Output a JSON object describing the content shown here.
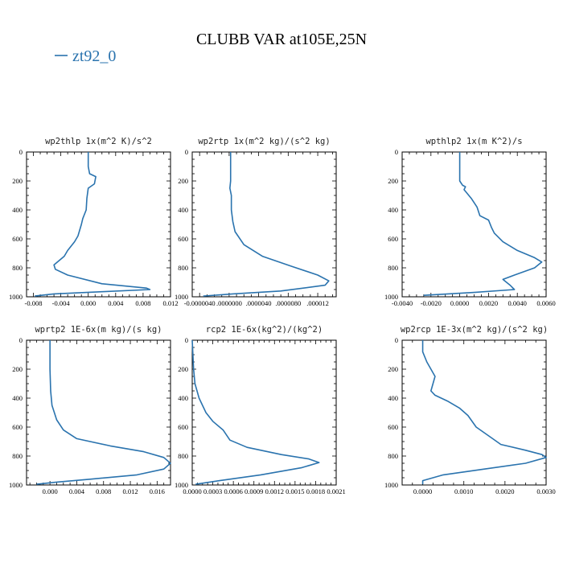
{
  "figure": {
    "title": "CLUBB VAR at105E,25N",
    "legend": {
      "label": "zt92_0",
      "color": "#2a73ae"
    }
  },
  "chart_data": [
    {
      "type": "line",
      "title": "wp2thlp  1x(m^2 K)/s^2",
      "xlim": [
        -0.009,
        0.012
      ],
      "xticks": [
        -0.008,
        -0.004,
        0.0,
        0.004,
        0.008,
        0.012
      ],
      "xtick_labels": [
        "-0.008",
        "-0.004",
        "0.000",
        "0.004",
        "0.008",
        "0.012"
      ],
      "ylim": [
        0,
        1000
      ],
      "yticks": [
        0,
        200,
        400,
        600,
        800,
        1000
      ],
      "series": [
        {
          "color": "#2a73ae",
          "x": [
            0.0,
            0.0,
            0.0002,
            0.0011,
            0.0009,
            0.0,
            -0.0002,
            -0.0003,
            -0.0008,
            -0.001,
            -0.0015,
            -0.002,
            -0.003,
            -0.0035,
            -0.005,
            -0.0048,
            -0.003,
            0.002,
            0.0085,
            0.009,
            0.002,
            -0.005,
            -0.0078
          ],
          "y": [
            0,
            100,
            150,
            170,
            220,
            250,
            320,
            400,
            460,
            500,
            580,
            620,
            680,
            720,
            780,
            810,
            850,
            910,
            940,
            950,
            965,
            980,
            995
          ]
        }
      ]
    },
    {
      "type": "line",
      "title": "wp2rtp  1x(m^2 kg)/(s^2 kg)",
      "xlim": [
        -5e-06,
        1.45e-05
      ],
      "xticks": [
        -4e-06,
        0.0,
        4e-06,
        8e-06,
        1.2e-05
      ],
      "xtick_labels": [
        "-0.0000040",
        ".0000000",
        ".0000040",
        ".0000080",
        ".000012"
      ],
      "ylim": [
        0,
        1000
      ],
      "yticks": [
        0,
        200,
        400,
        600,
        800,
        1000
      ],
      "series": [
        {
          "color": "#2a73ae",
          "x": [
            2e-07,
            2e-07,
            2e-07,
            1e-07,
            3e-07,
            3e-07,
            5e-07,
            8e-07,
            2e-06,
            4.5e-06,
            8.5e-06,
            1.2e-05,
            1.35e-05,
            1.3e-05,
            7e-06,
            5e-07,
            -3.5e-06
          ],
          "y": [
            0,
            100,
            200,
            250,
            300,
            400,
            480,
            550,
            640,
            720,
            790,
            850,
            890,
            920,
            960,
            980,
            995
          ]
        }
      ]
    },
    {
      "type": "line",
      "title": "wpthlp2  1x(m K^2)/s",
      "xlim": [
        -0.004,
        0.006
      ],
      "xticks": [
        -0.004,
        -0.002,
        0.0,
        0.002,
        0.004,
        0.006
      ],
      "xtick_labels": [
        "-0.0040",
        "-0.0020",
        "0.0000",
        "0.0020",
        "0.0040",
        "0.0060"
      ],
      "ylim": [
        0,
        1000
      ],
      "yticks": [
        0,
        200,
        400,
        600,
        800,
        1000
      ],
      "series": [
        {
          "color": "#2a73ae",
          "x": [
            0.0,
            0.0,
            0.0,
            0.0002,
            0.0004,
            0.0003,
            0.0008,
            0.0012,
            0.0014,
            0.002,
            0.0022,
            0.0024,
            0.003,
            0.004,
            0.0052,
            0.0057,
            0.0052,
            0.0038,
            0.003,
            0.0035,
            0.0038,
            0.001,
            -0.0025
          ],
          "y": [
            0,
            100,
            200,
            230,
            240,
            260,
            320,
            380,
            440,
            470,
            520,
            560,
            620,
            680,
            730,
            760,
            800,
            850,
            880,
            920,
            950,
            970,
            990
          ]
        }
      ]
    },
    {
      "type": "line",
      "title": "wprtp2  1E-6x(m kg)/(s kg)",
      "xlim": [
        -0.0035,
        0.018
      ],
      "xticks": [
        0.0,
        0.004,
        0.008,
        0.012,
        0.016
      ],
      "xtick_labels": [
        "0.000",
        "0.004",
        "0.008",
        "0.012",
        "0.016"
      ],
      "ylim": [
        0,
        1000
      ],
      "yticks": [
        0,
        200,
        400,
        600,
        800,
        1000
      ],
      "series": [
        {
          "color": "#2a73ae",
          "x": [
            0.0,
            0.0,
            0.0001,
            0.0003,
            0.001,
            0.002,
            0.004,
            0.009,
            0.014,
            0.017,
            0.018,
            0.017,
            0.013,
            0.006,
            0.001,
            -0.002
          ],
          "y": [
            0,
            200,
            350,
            450,
            550,
            620,
            680,
            730,
            770,
            810,
            850,
            890,
            930,
            960,
            980,
            995
          ]
        }
      ]
    },
    {
      "type": "line",
      "title": "rcp2  1E-6x(kg^2)/(kg^2)",
      "xlim": [
        0.0,
        0.0021
      ],
      "xticks": [
        0.0,
        0.0003,
        0.0006,
        0.0009,
        0.0012,
        0.0015,
        0.0018,
        0.0021
      ],
      "xtick_labels": [
        "0.0000",
        "0.0003",
        "0.0006",
        "0.0009",
        "0.0012",
        "0.0015",
        "0.0018",
        "0.0021"
      ],
      "ylim": [
        0,
        1000
      ],
      "yticks": [
        0,
        200,
        400,
        600,
        800,
        1000
      ],
      "series": [
        {
          "color": "#2a73ae",
          "x": [
            0.0,
            1e-05,
            2e-05,
            4e-05,
            0.0001,
            0.0002,
            0.0003,
            0.00045,
            0.00055,
            0.0008,
            0.0013,
            0.0017,
            0.00185,
            0.0016,
            0.001,
            0.0004,
            5e-05
          ],
          "y": [
            0,
            100,
            200,
            300,
            400,
            500,
            560,
            620,
            690,
            740,
            790,
            820,
            845,
            880,
            930,
            970,
            995
          ]
        }
      ]
    },
    {
      "type": "line",
      "title": "wp2rcp  1E-3x(m^2 kg)/(s^2 kg)",
      "xlim": [
        -0.0005,
        0.003
      ],
      "xticks": [
        0.0,
        0.001,
        0.002,
        0.003
      ],
      "xtick_labels": [
        "0.0000",
        "0.0010",
        "0.0020",
        "0.0030"
      ],
      "ylim": [
        0,
        1000
      ],
      "yticks": [
        0,
        200,
        400,
        600,
        800,
        1000
      ],
      "series": [
        {
          "color": "#2a73ae",
          "x": [
            0.0,
            0.0,
            0.0001,
            0.0002,
            0.0003,
            0.00025,
            0.0002,
            0.0003,
            0.0006,
            0.0009,
            0.0011,
            0.0013,
            0.0017,
            0.0019,
            0.0025,
            0.0029,
            0.003,
            0.0025,
            0.0015,
            0.0005,
            0.0,
            0.0
          ],
          "y": [
            0,
            80,
            150,
            200,
            250,
            300,
            350,
            380,
            420,
            470,
            520,
            600,
            680,
            720,
            760,
            790,
            810,
            850,
            890,
            930,
            970,
            995
          ]
        }
      ]
    }
  ]
}
